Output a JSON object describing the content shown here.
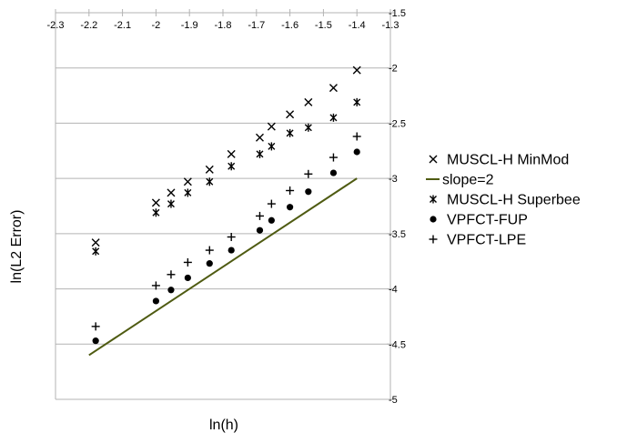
{
  "chart_data": {
    "type": "scatter",
    "title": "",
    "xlabel": "ln(h)",
    "ylabel": "ln(L2 Error)",
    "xlim": [
      -2.3,
      -1.3
    ],
    "ylim": [
      -5,
      -1.5
    ],
    "x_axis_position": "top",
    "y_axis_position": "right",
    "x_ticks": [
      -2.3,
      -2.2,
      -2.1,
      -2.0,
      -1.9,
      -1.8,
      -1.7,
      -1.6,
      -1.5,
      -1.4,
      -1.3
    ],
    "x_tick_labels": [
      "-2.3",
      "-2.2",
      "-2.1",
      "-2",
      "-1.9",
      "-1.8",
      "-1.7",
      "-1.6",
      "-1.5",
      "-1.4",
      "-1.3"
    ],
    "y_ticks": [
      -1.5,
      -2.0,
      -2.5,
      -3.0,
      -3.5,
      -4.0,
      -4.5,
      -5.0
    ],
    "y_tick_labels": [
      "-1.5",
      "-2",
      "-2.5",
      "-3",
      "-3.5",
      "-4",
      "-4.5",
      "-5"
    ],
    "grid": "horizontal",
    "legend_position": "right",
    "series": [
      {
        "name": "MUSCL-H MinMod",
        "marker": "x",
        "color": "#000000",
        "x": [
          -2.18,
          -2.0,
          -1.955,
          -1.905,
          -1.84,
          -1.775,
          -1.69,
          -1.655,
          -1.6,
          -1.545,
          -1.47,
          -1.4
        ],
        "y": [
          -3.58,
          -3.22,
          -3.13,
          -3.03,
          -2.92,
          -2.78,
          -2.63,
          -2.53,
          -2.42,
          -2.31,
          -2.18,
          -2.02
        ]
      },
      {
        "name": "slope=2",
        "marker": "line",
        "color": "#4f5b12",
        "x": [
          -2.2,
          -1.4
        ],
        "y": [
          -4.6,
          -3.0
        ]
      },
      {
        "name": "MUSCL-H Superbee",
        "marker": "asterisk",
        "color": "#000000",
        "x": [
          -2.18,
          -2.0,
          -1.955,
          -1.905,
          -1.84,
          -1.775,
          -1.69,
          -1.655,
          -1.6,
          -1.545,
          -1.47,
          -1.4
        ],
        "y": [
          -3.66,
          -3.31,
          -3.23,
          -3.13,
          -3.03,
          -2.89,
          -2.78,
          -2.71,
          -2.59,
          -2.54,
          -2.45,
          -2.31
        ]
      },
      {
        "name": "VPFCT-FUP",
        "marker": "circle",
        "color": "#000000",
        "x": [
          -2.18,
          -2.0,
          -1.955,
          -1.905,
          -1.84,
          -1.775,
          -1.69,
          -1.655,
          -1.6,
          -1.545,
          -1.47,
          -1.4
        ],
        "y": [
          -4.47,
          -4.11,
          -4.01,
          -3.9,
          -3.77,
          -3.65,
          -3.47,
          -3.38,
          -3.26,
          -3.12,
          -2.95,
          -2.76
        ]
      },
      {
        "name": "VPFCT-LPE",
        "marker": "plus",
        "color": "#000000",
        "x": [
          -2.18,
          -2.0,
          -1.955,
          -1.905,
          -1.84,
          -1.775,
          -1.69,
          -1.655,
          -1.6,
          -1.545,
          -1.47,
          -1.4
        ],
        "y": [
          -4.34,
          -3.97,
          -3.87,
          -3.76,
          -3.65,
          -3.53,
          -3.34,
          -3.23,
          -3.11,
          -2.96,
          -2.81,
          -2.62
        ]
      }
    ]
  }
}
